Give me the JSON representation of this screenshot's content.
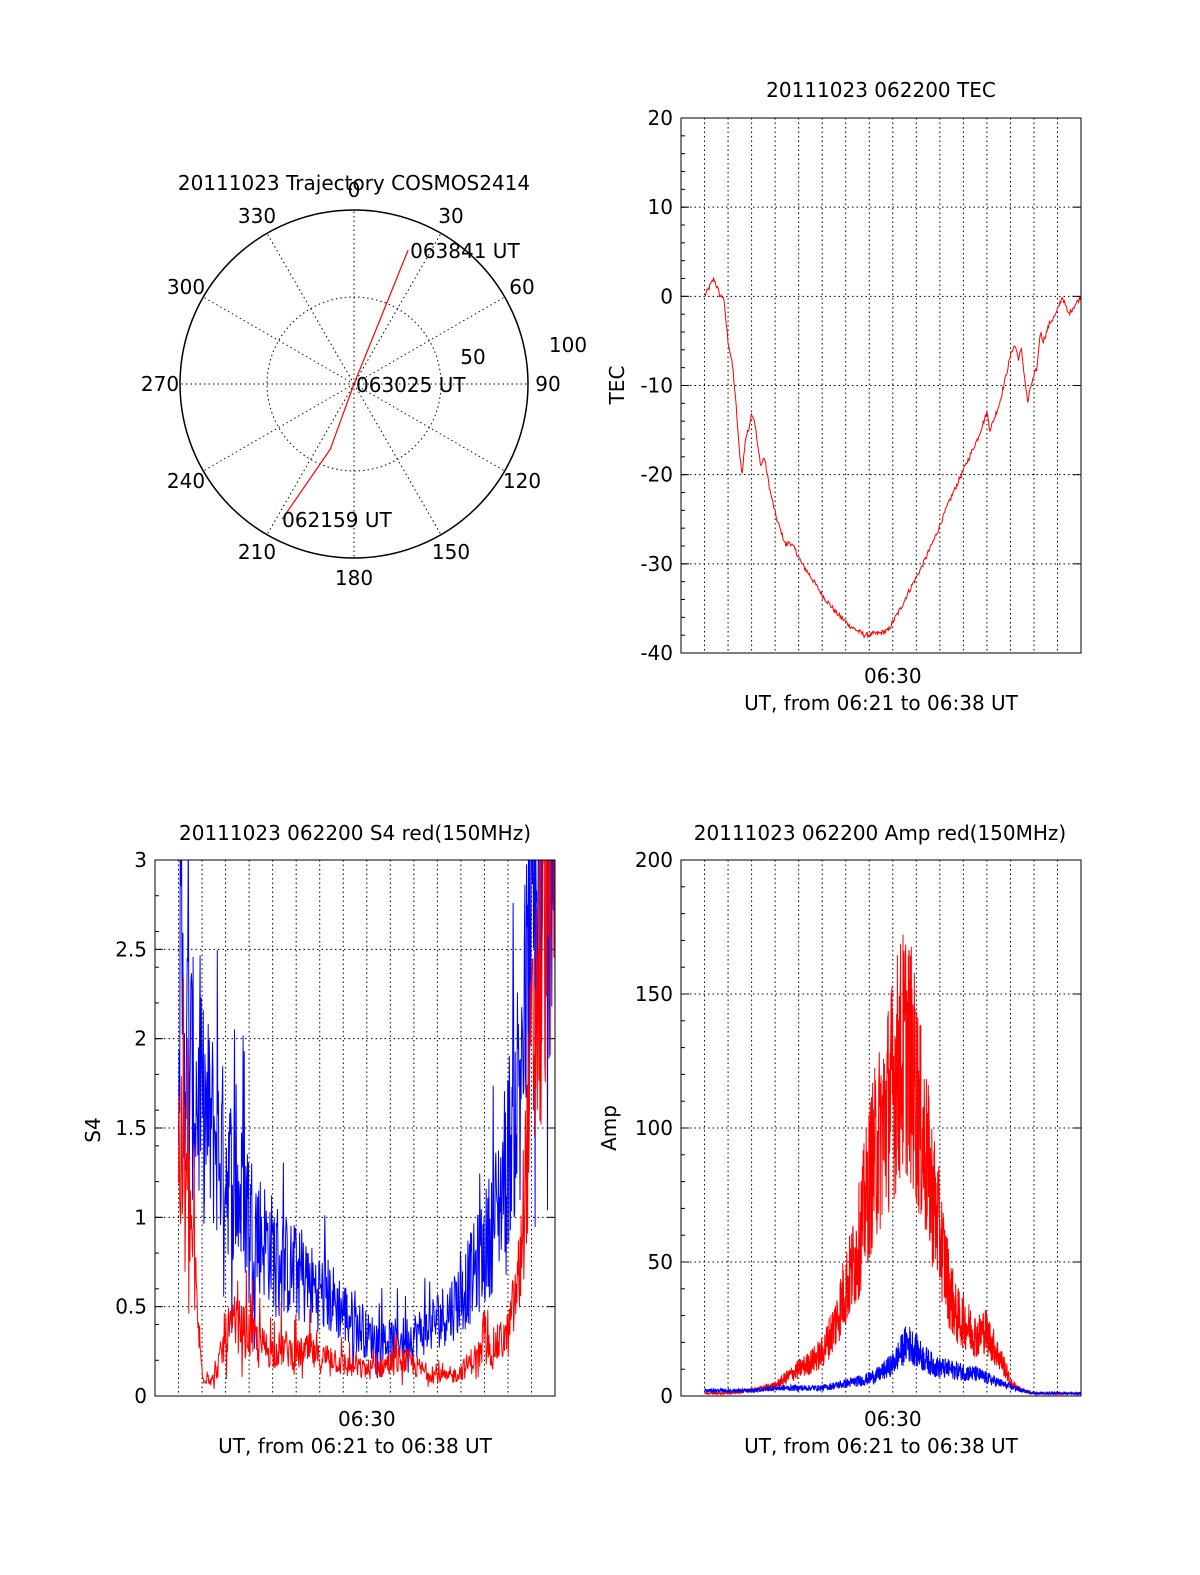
{
  "chart_data": [
    {
      "type": "polar",
      "title": "20111023 Trajectory COSMOS2414",
      "azimuth_labels": [
        "0",
        "30",
        "60",
        "90",
        "120",
        "150",
        "180",
        "210",
        "240",
        "270",
        "300",
        "330"
      ],
      "azimuth_values": [
        0,
        30,
        60,
        90,
        120,
        150,
        180,
        210,
        240,
        270,
        300,
        330
      ],
      "radial_labels": [
        "50",
        "100"
      ],
      "radial_values": [
        50,
        100
      ],
      "grid": true,
      "series": [
        {
          "color": "#ff0000",
          "points": [
            {
              "az": 208,
              "r": 88
            },
            {
              "az": 200,
              "r": 40
            },
            {
              "az": 0,
              "r": 0
            },
            {
              "az": 22,
              "r": 40
            },
            {
              "az": 22,
              "r": 83
            }
          ]
        }
      ],
      "annotations": [
        {
          "text": "063841 UT",
          "az": 22,
          "r": 83
        },
        {
          "text": "063025 UT",
          "az": 0,
          "r": 0
        },
        {
          "text": "062159 UT",
          "az": 208,
          "r": 88
        }
      ]
    },
    {
      "type": "line",
      "title": "20111023 062200 TEC",
      "xlabel": "UT, from 06:21 to 06:38 UT",
      "ylabel": "TEC",
      "xlim": [
        6.35,
        6.6333
      ],
      "ylim": [
        -40,
        20
      ],
      "yticks": [
        "20",
        "10",
        "0",
        "-10",
        "-20",
        "-30",
        "-40"
      ],
      "ytick_values": [
        20,
        10,
        0,
        -10,
        -20,
        -30,
        -40
      ],
      "xticks": [
        "06:30"
      ],
      "xtick_values": [
        6.5
      ],
      "grid": true,
      "series": [
        {
          "color": "#ff0000",
          "x": [
            6.3667,
            6.3733,
            6.3778,
            6.38,
            6.3833,
            6.3867,
            6.3889,
            6.3911,
            6.3933,
            6.3956,
            6.3978,
            6.4,
            6.4022,
            6.4044,
            6.4067,
            6.4089,
            6.4111,
            6.4133,
            6.4178,
            6.42,
            6.4222,
            6.4244,
            6.4267,
            6.4311,
            6.4356,
            6.4422,
            6.45,
            6.46,
            6.47,
            6.48,
            6.49,
            6.4967,
            6.5,
            6.5056,
            6.51,
            6.52,
            6.53,
            6.54,
            6.55,
            6.56,
            6.5667,
            6.5689,
            6.5711,
            6.5756,
            6.58,
            6.5844,
            6.5867,
            6.5889,
            6.5911,
            6.5933,
            6.5956,
            6.5978,
            6.6022,
            6.6044,
            6.6067,
            6.6111,
            6.6156,
            6.62,
            6.6244,
            6.6289,
            6.6333
          ],
          "y": [
            0,
            2,
            0,
            0,
            -5,
            -8,
            -12,
            -17,
            -20,
            -16,
            -15,
            -13,
            -14,
            -17,
            -19,
            -18,
            -20,
            -22,
            -25,
            -26,
            -27,
            -28,
            -27.5,
            -28.5,
            -30,
            -31.5,
            -33.5,
            -35.5,
            -37,
            -38,
            -37.8,
            -37.5,
            -36.5,
            -35,
            -33.5,
            -30.5,
            -27,
            -23,
            -19.5,
            -16,
            -13,
            -15,
            -14,
            -12,
            -9,
            -6,
            -5.5,
            -7,
            -6,
            -9,
            -12,
            -10,
            -8,
            -4,
            -5,
            -3,
            -2,
            0,
            -2,
            -1,
            0
          ]
        }
      ]
    },
    {
      "type": "line",
      "title": "20111023 062200 S4 red(150MHz)",
      "xlabel": "UT, from 06:21 to 06:38 UT",
      "ylabel": "S4",
      "xlim": [
        6.35,
        6.6333
      ],
      "ylim": [
        0,
        3
      ],
      "yticks": [
        "3",
        "2.5",
        "2",
        "1.5",
        "1",
        "0.5",
        "0"
      ],
      "ytick_values": [
        3,
        2.5,
        2,
        1.5,
        1,
        0.5,
        0
      ],
      "xticks": [
        "06:30"
      ],
      "xtick_values": [
        6.5
      ],
      "grid": true,
      "series": [
        {
          "color": "#0000ff",
          "x": [
            6.3667,
            6.375,
            6.3833,
            6.3917,
            6.4,
            6.4083,
            6.4167,
            6.425,
            6.4333,
            6.4417,
            6.45,
            6.4583,
            6.4667,
            6.475,
            6.4833,
            6.4917,
            6.5,
            6.5083,
            6.5167,
            6.525,
            6.5333,
            6.5417,
            6.55,
            6.5583,
            6.5667,
            6.575,
            6.5833,
            6.5917,
            6.6,
            6.6083,
            6.6167,
            6.625,
            6.6333
          ],
          "y": [
            2.0,
            1.6,
            1.4,
            1.3,
            1.15,
            1.0,
            0.9,
            0.8,
            0.72,
            0.65,
            0.6,
            0.55,
            0.52,
            0.48,
            0.42,
            0.36,
            0.3,
            0.28,
            0.27,
            0.28,
            0.3,
            0.33,
            0.38,
            0.42,
            0.5,
            0.6,
            0.72,
            0.9,
            1.2,
            1.6,
            2.2,
            2.6,
            2.8
          ]
        },
        {
          "color": "#ff0000",
          "x": [
            6.3667,
            6.375,
            6.3833,
            6.3917,
            6.4,
            6.4083,
            6.4167,
            6.425,
            6.4333,
            6.4417,
            6.45,
            6.4583,
            6.4667,
            6.475,
            6.4833,
            6.4917,
            6.5,
            6.5083,
            6.5167,
            6.525,
            6.5333,
            6.5417,
            6.55,
            6.5583,
            6.5667,
            6.575,
            6.5833,
            6.5917,
            6.6,
            6.6083,
            6.6167,
            6.625,
            6.6333
          ],
          "y": [
            1.2,
            0.9,
            0.1,
            0.08,
            0.28,
            0.35,
            0.3,
            0.25,
            0.22,
            0.24,
            0.2,
            0.22,
            0.18,
            0.2,
            0.15,
            0.14,
            0.13,
            0.14,
            0.16,
            0.18,
            0.15,
            0.12,
            0.1,
            0.09,
            0.12,
            0.18,
            0.22,
            0.25,
            0.3,
            0.6,
            1.6,
            2.4,
            2.8
          ]
        }
      ]
    },
    {
      "type": "line",
      "title": "20111023 062200 Amp red(150MHz)",
      "xlabel": "UT, from 06:21 to 06:38 UT",
      "ylabel": "Amp",
      "xlim": [
        6.35,
        6.6333
      ],
      "ylim": [
        0,
        200
      ],
      "yticks": [
        "200",
        "150",
        "100",
        "50",
        "0"
      ],
      "ytick_values": [
        200,
        150,
        100,
        50,
        0
      ],
      "xticks": [
        "06:30"
      ],
      "xtick_values": [
        6.5
      ],
      "grid": true,
      "series": [
        {
          "color": "#ff0000",
          "x": [
            6.3667,
            6.3833,
            6.4,
            6.4167,
            6.4333,
            6.44,
            6.45,
            6.46,
            6.465,
            6.47,
            6.475,
            6.48,
            6.485,
            6.49,
            6.495,
            6.5,
            6.505,
            6.51,
            6.515,
            6.52,
            6.525,
            6.53,
            6.535,
            6.54,
            6.545,
            6.55,
            6.555,
            6.56,
            6.565,
            6.57,
            6.575,
            6.58,
            6.5833,
            6.5917,
            6.6,
            6.6167,
            6.6333
          ],
          "y": [
            1,
            1,
            2,
            4,
            10,
            12,
            16,
            28,
            38,
            45,
            55,
            70,
            85,
            95,
            105,
            115,
            125,
            130,
            118,
            100,
            85,
            70,
            55,
            40,
            30,
            28,
            25,
            22,
            25,
            20,
            15,
            10,
            5,
            2,
            1,
            1,
            1
          ]
        },
        {
          "color": "#0000ff",
          "x": [
            6.3667,
            6.3833,
            6.4,
            6.4167,
            6.4333,
            6.45,
            6.46,
            6.47,
            6.48,
            6.49,
            6.5,
            6.505,
            6.51,
            6.515,
            6.52,
            6.53,
            6.54,
            6.55,
            6.56,
            6.57,
            6.58,
            6.5917,
            6.6,
            6.6167,
            6.6333
          ],
          "y": [
            2,
            2,
            2,
            3,
            3,
            3,
            4,
            5,
            6,
            8,
            12,
            16,
            20,
            18,
            15,
            11,
            10,
            9,
            8,
            6,
            4,
            2,
            1,
            1,
            1
          ]
        }
      ]
    }
  ]
}
